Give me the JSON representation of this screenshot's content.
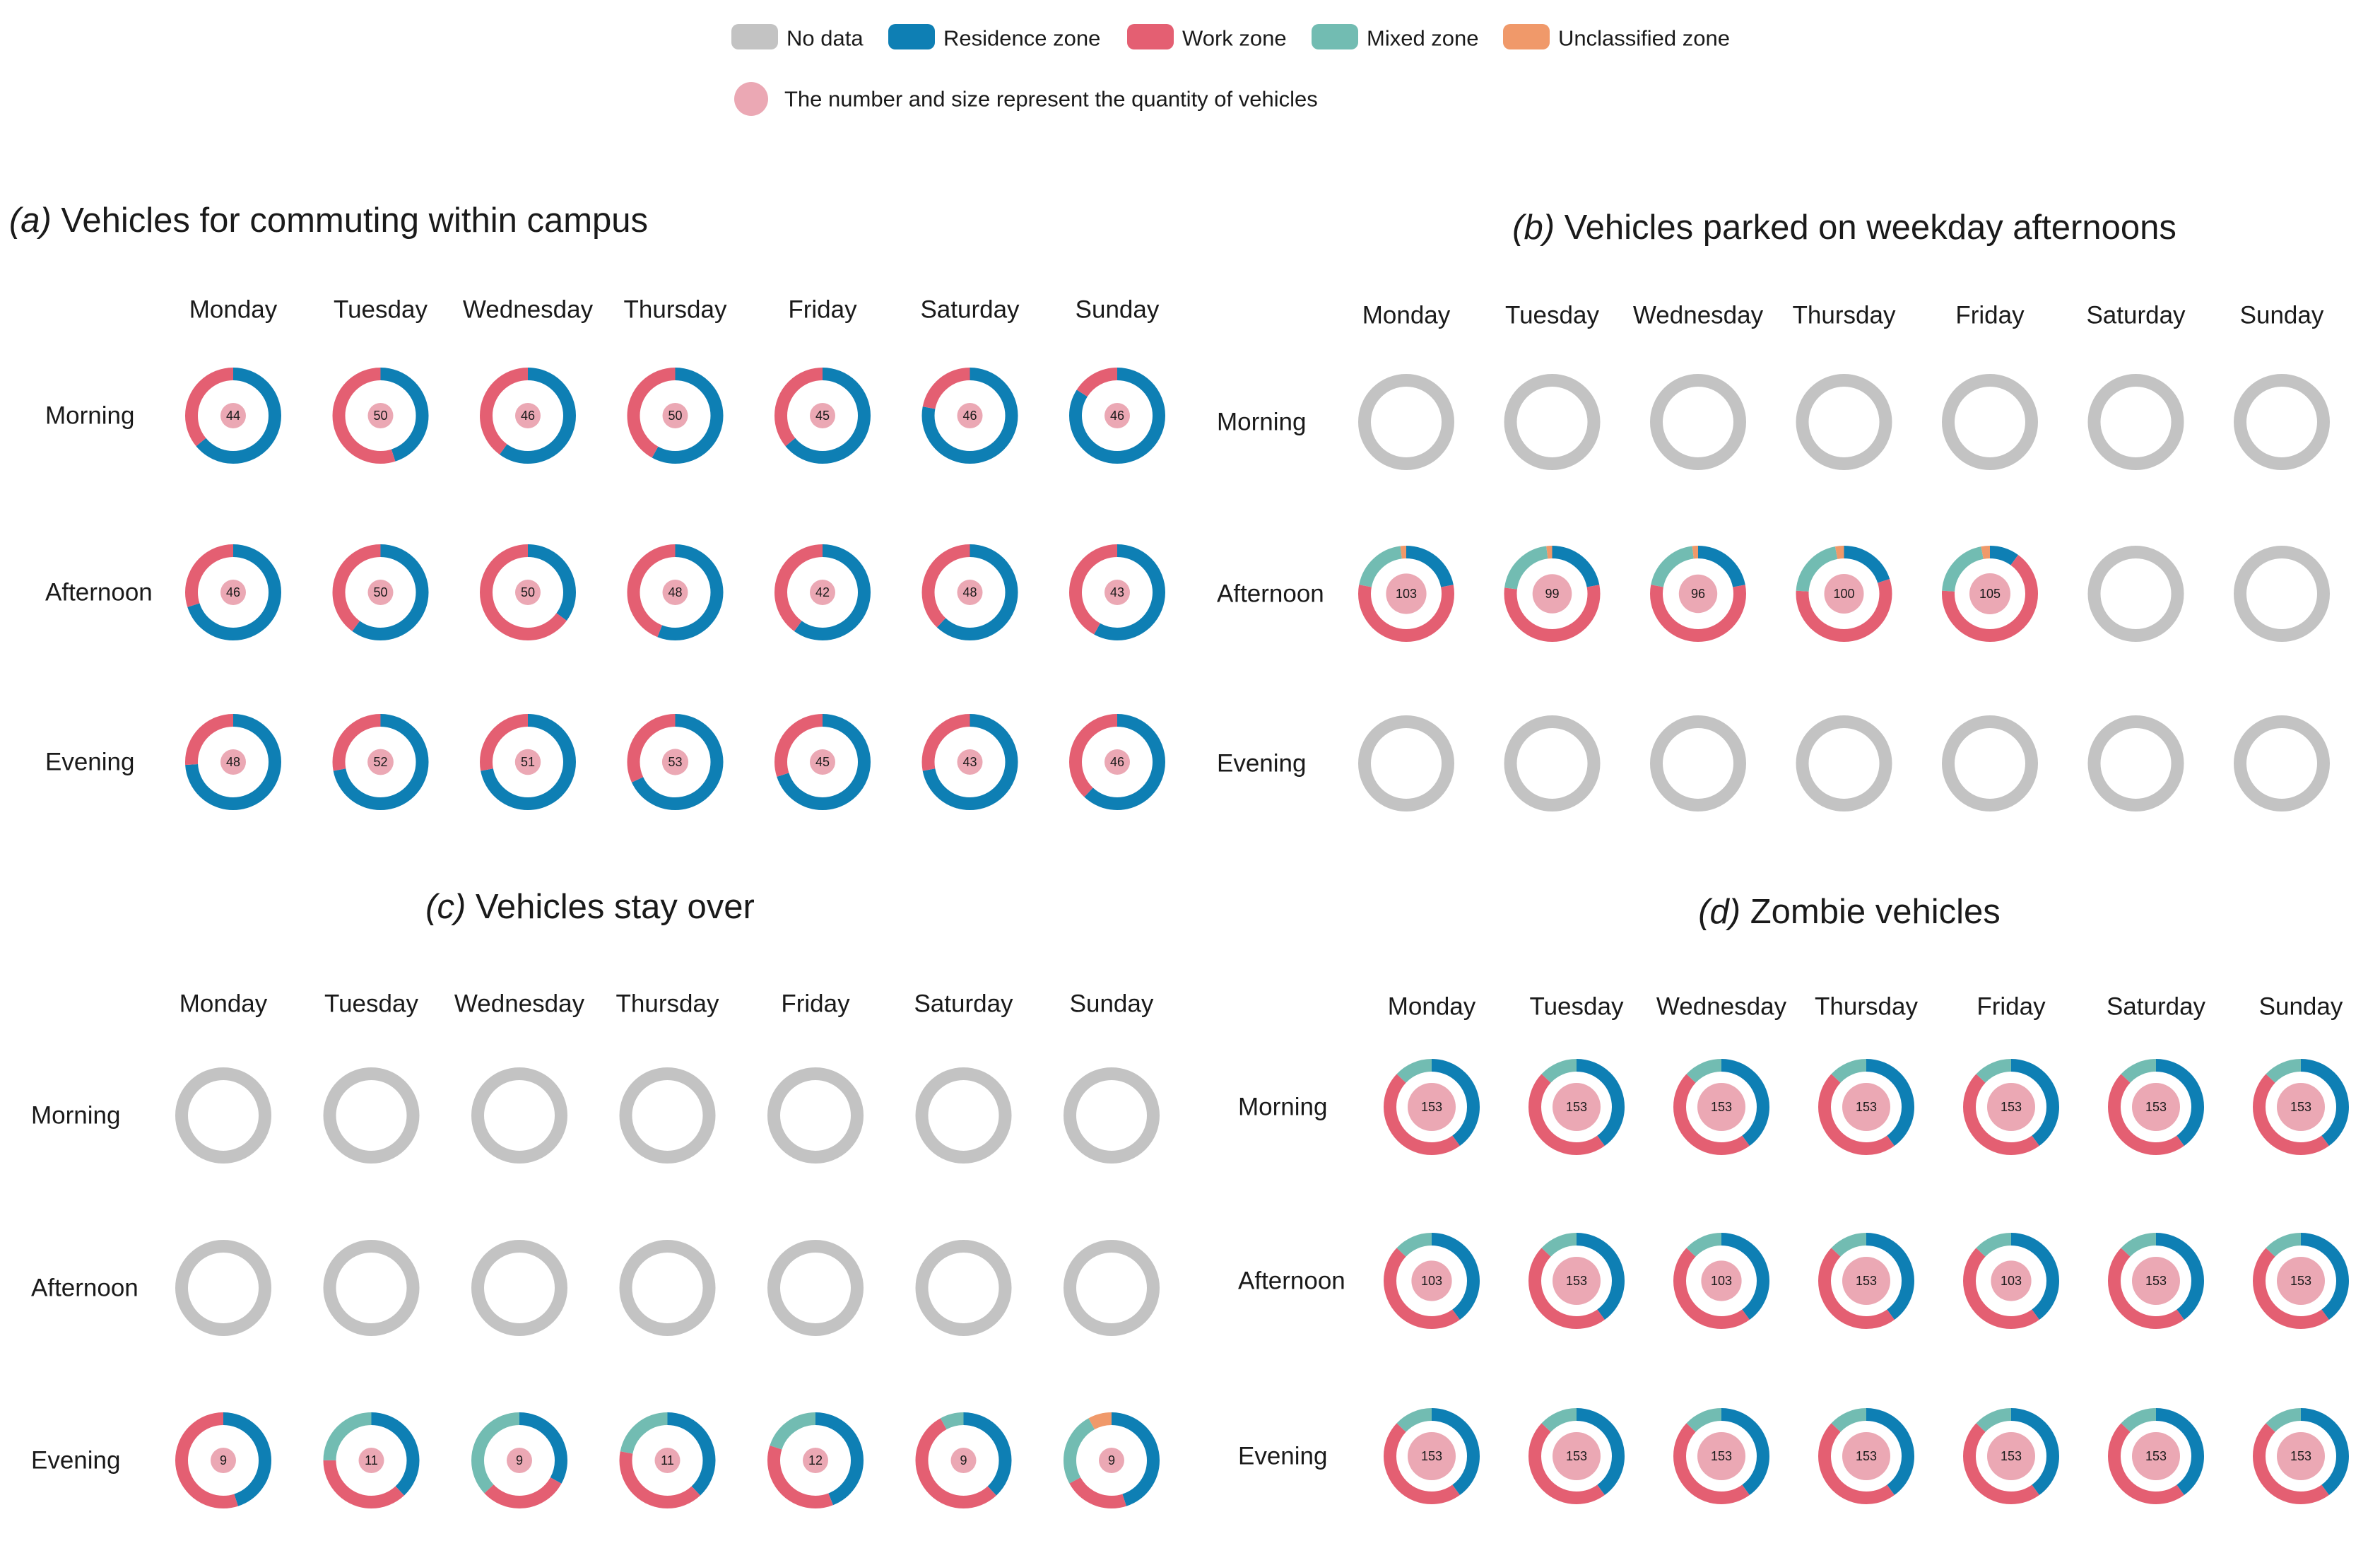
{
  "chart_data": {
    "type": "donut-grid",
    "legend": {
      "items": [
        {
          "key": "nodata",
          "label": "No data",
          "color": "#c3c3c3"
        },
        {
          "key": "residence",
          "label": "Residence zone",
          "color": "#0e7fb4"
        },
        {
          "key": "work",
          "label": "Work zone",
          "color": "#e45f72"
        },
        {
          "key": "mixed",
          "label": "Mixed zone",
          "color": "#72bcb2"
        },
        {
          "key": "unclassified",
          "label": "Unclassified zone",
          "color": "#f0996a"
        }
      ],
      "note": "The number and size represent the quantity of vehicles",
      "note_color": "#eba8b4"
    },
    "inner_circle_color": "#eba8b4",
    "days": [
      "Monday",
      "Tuesday",
      "Wednesday",
      "Thursday",
      "Friday",
      "Saturday",
      "Sunday"
    ],
    "periods": [
      "Morning",
      "Afternoon",
      "Evening"
    ],
    "panels": [
      {
        "letter": "(a)",
        "title": "Vehicles for commuting within campus",
        "cells": [
          [
            {
              "value": "44",
              "residence": 0.64,
              "work": 0.36
            },
            {
              "value": "50",
              "residence": 0.45,
              "work": 0.55
            },
            {
              "value": "46",
              "residence": 0.6,
              "work": 0.4
            },
            {
              "value": "50",
              "residence": 0.58,
              "work": 0.42
            },
            {
              "value": "45",
              "residence": 0.64,
              "work": 0.36
            },
            {
              "value": "46",
              "residence": 0.78,
              "work": 0.22
            },
            {
              "value": "46",
              "residence": 0.84,
              "work": 0.16
            }
          ],
          [
            {
              "value": "46",
              "residence": 0.7,
              "work": 0.3
            },
            {
              "value": "50",
              "residence": 0.6,
              "work": 0.4
            },
            {
              "value": "50",
              "residence": 0.35,
              "work": 0.65
            },
            {
              "value": "48",
              "residence": 0.56,
              "work": 0.44
            },
            {
              "value": "42",
              "residence": 0.6,
              "work": 0.4
            },
            {
              "value": "48",
              "residence": 0.62,
              "work": 0.38
            },
            {
              "value": "43",
              "residence": 0.58,
              "work": 0.42
            }
          ],
          [
            {
              "value": "48",
              "residence": 0.74,
              "work": 0.26
            },
            {
              "value": "52",
              "residence": 0.72,
              "work": 0.28
            },
            {
              "value": "51",
              "residence": 0.72,
              "work": 0.28
            },
            {
              "value": "53",
              "residence": 0.68,
              "work": 0.32
            },
            {
              "value": "45",
              "residence": 0.7,
              "work": 0.3
            },
            {
              "value": "43",
              "residence": 0.72,
              "work": 0.28
            },
            {
              "value": "46",
              "residence": 0.62,
              "work": 0.38
            }
          ]
        ]
      },
      {
        "letter": "(b)",
        "title": "Vehicles parked on weekday afternoons",
        "cells": [
          [
            {
              "nodata": true
            },
            {
              "nodata": true
            },
            {
              "nodata": true
            },
            {
              "nodata": true
            },
            {
              "nodata": true
            },
            {
              "nodata": true
            },
            {
              "nodata": true
            }
          ],
          [
            {
              "value": "103",
              "residence": 0.22,
              "work": 0.56,
              "mixed": 0.2,
              "unclassified": 0.02
            },
            {
              "value": "99",
              "residence": 0.22,
              "work": 0.55,
              "mixed": 0.21,
              "unclassified": 0.02
            },
            {
              "value": "96",
              "residence": 0.22,
              "work": 0.56,
              "mixed": 0.2,
              "unclassified": 0.02
            },
            {
              "value": "100",
              "residence": 0.2,
              "work": 0.56,
              "mixed": 0.21,
              "unclassified": 0.03
            },
            {
              "value": "105",
              "residence": 0.1,
              "work": 0.66,
              "mixed": 0.21,
              "unclassified": 0.03
            },
            {
              "nodata": true
            },
            {
              "nodata": true
            }
          ],
          [
            {
              "nodata": true
            },
            {
              "nodata": true
            },
            {
              "nodata": true
            },
            {
              "nodata": true
            },
            {
              "nodata": true
            },
            {
              "nodata": true
            },
            {
              "nodata": true
            }
          ]
        ]
      },
      {
        "letter": "(c)",
        "title": "Vehicles stay over",
        "cells": [
          [
            {
              "nodata": true
            },
            {
              "nodata": true
            },
            {
              "nodata": true
            },
            {
              "nodata": true
            },
            {
              "nodata": true
            },
            {
              "nodata": true
            },
            {
              "nodata": true
            }
          ],
          [
            {
              "nodata": true
            },
            {
              "nodata": true
            },
            {
              "nodata": true
            },
            {
              "nodata": true
            },
            {
              "nodata": true
            },
            {
              "nodata": true
            },
            {
              "nodata": true
            }
          ],
          [
            {
              "value": "9",
              "residence": 0.45,
              "work": 0.55
            },
            {
              "value": "11",
              "residence": 0.38,
              "work": 0.37,
              "mixed": 0.25
            },
            {
              "value": "9",
              "residence": 0.33,
              "work": 0.3,
              "mixed": 0.37
            },
            {
              "value": "11",
              "residence": 0.38,
              "work": 0.4,
              "mixed": 0.22
            },
            {
              "value": "12",
              "residence": 0.44,
              "work": 0.36,
              "mixed": 0.2
            },
            {
              "value": "9",
              "residence": 0.38,
              "work": 0.54,
              "mixed": 0.08
            },
            {
              "value": "9",
              "residence": 0.45,
              "work": 0.22,
              "mixed": 0.25,
              "unclassified": 0.08
            }
          ]
        ]
      },
      {
        "letter": "(d)",
        "title": "Zombie vehicles",
        "cells": [
          [
            {
              "value": "153",
              "residence": 0.4,
              "work": 0.47,
              "mixed": 0.13
            },
            {
              "value": "153",
              "residence": 0.4,
              "work": 0.47,
              "mixed": 0.13
            },
            {
              "value": "153",
              "residence": 0.4,
              "work": 0.47,
              "mixed": 0.13
            },
            {
              "value": "153",
              "residence": 0.4,
              "work": 0.47,
              "mixed": 0.13
            },
            {
              "value": "153",
              "residence": 0.4,
              "work": 0.47,
              "mixed": 0.13
            },
            {
              "value": "153",
              "residence": 0.4,
              "work": 0.47,
              "mixed": 0.13
            },
            {
              "value": "153",
              "residence": 0.4,
              "work": 0.47,
              "mixed": 0.13
            }
          ],
          [
            {
              "value": "103",
              "residence": 0.4,
              "work": 0.47,
              "mixed": 0.13
            },
            {
              "value": "153",
              "residence": 0.4,
              "work": 0.47,
              "mixed": 0.13
            },
            {
              "value": "103",
              "residence": 0.4,
              "work": 0.47,
              "mixed": 0.13
            },
            {
              "value": "153",
              "residence": 0.4,
              "work": 0.47,
              "mixed": 0.13
            },
            {
              "value": "103",
              "residence": 0.4,
              "work": 0.47,
              "mixed": 0.13
            },
            {
              "value": "153",
              "residence": 0.4,
              "work": 0.47,
              "mixed": 0.13
            },
            {
              "value": "153",
              "residence": 0.4,
              "work": 0.47,
              "mixed": 0.13
            }
          ],
          [
            {
              "value": "153",
              "residence": 0.4,
              "work": 0.47,
              "mixed": 0.13
            },
            {
              "value": "153",
              "residence": 0.4,
              "work": 0.47,
              "mixed": 0.13
            },
            {
              "value": "153",
              "residence": 0.4,
              "work": 0.47,
              "mixed": 0.13
            },
            {
              "value": "153",
              "residence": 0.4,
              "work": 0.47,
              "mixed": 0.13
            },
            {
              "value": "153",
              "residence": 0.4,
              "work": 0.47,
              "mixed": 0.13
            },
            {
              "value": "153",
              "residence": 0.4,
              "work": 0.47,
              "mixed": 0.13
            },
            {
              "value": "153",
              "residence": 0.4,
              "work": 0.47,
              "mixed": 0.13
            }
          ]
        ]
      }
    ]
  }
}
